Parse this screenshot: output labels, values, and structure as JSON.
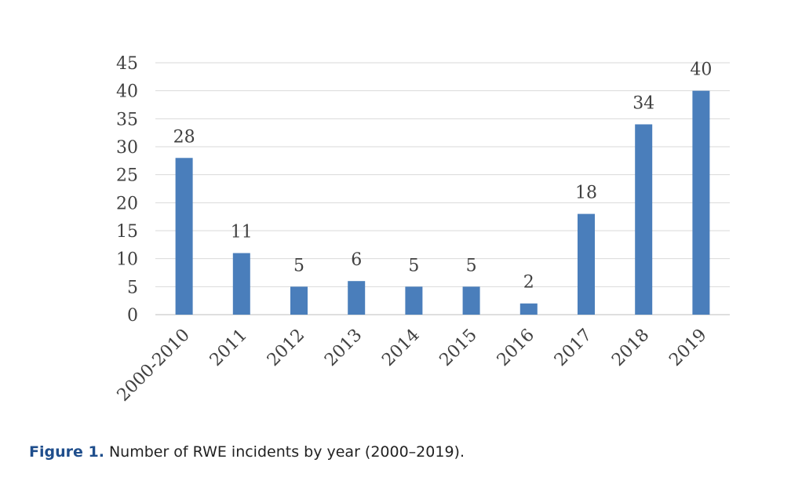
{
  "chart_data": {
    "type": "bar",
    "categories": [
      "2000-2010",
      "2011",
      "2012",
      "2013",
      "2014",
      "2015",
      "2016",
      "2017",
      "2018",
      "2019"
    ],
    "values": [
      28,
      11,
      5,
      6,
      5,
      5,
      2,
      18,
      34,
      40
    ],
    "color": "#4a7ebb",
    "ylim": [
      0,
      45
    ],
    "yticks": [
      0,
      5,
      10,
      15,
      20,
      25,
      30,
      35,
      40,
      45
    ],
    "grid": true,
    "caption_label": "Figure 1.",
    "caption": "Number of RWE incidents by year (2000–2019)."
  }
}
